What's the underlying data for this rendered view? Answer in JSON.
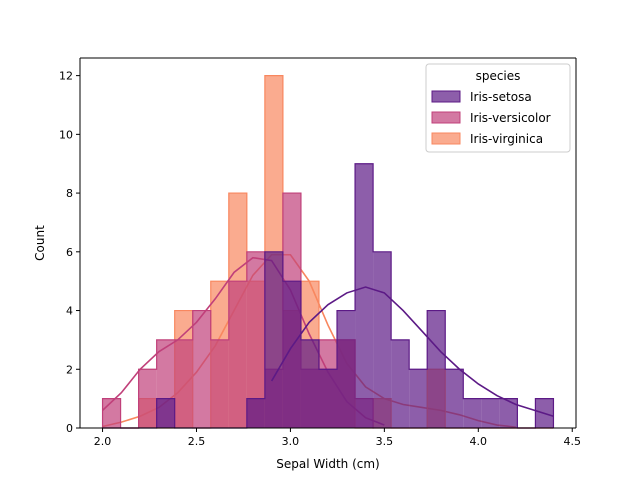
{
  "chart_data": {
    "type": "histogram",
    "title": "",
    "xlabel": "Sepal Width (cm)",
    "ylabel": "Count",
    "xlim": [
      1.88,
      4.52
    ],
    "ylim": [
      0,
      12.6
    ],
    "xticks": [
      2.0,
      2.5,
      3.0,
      3.5,
      4.0,
      4.5
    ],
    "xtick_labels": [
      "2.0",
      "2.5",
      "3.0",
      "3.5",
      "4.0",
      "4.5"
    ],
    "yticks": [
      0,
      2,
      4,
      6,
      8,
      10,
      12
    ],
    "ytick_labels": [
      "0",
      "2",
      "4",
      "6",
      "8",
      "10",
      "12"
    ],
    "grid": false,
    "bin_edges": [
      2.0,
      2.096,
      2.192,
      2.288,
      2.384,
      2.48,
      2.576,
      2.672,
      2.768,
      2.864,
      2.96,
      3.056,
      3.152,
      3.248,
      3.344,
      3.44,
      3.536,
      3.632,
      3.728,
      3.824,
      3.92,
      4.016,
      4.112,
      4.208,
      4.304,
      4.4
    ],
    "legend": {
      "title": "species",
      "position": "upper right"
    },
    "series": [
      {
        "name": "Iris-virginica",
        "color": "#f8875f",
        "counts": [
          0,
          0,
          1,
          0,
          4,
          0,
          5,
          8,
          5,
          12,
          4,
          5,
          2,
          3,
          0,
          1,
          0,
          0,
          2,
          0,
          0,
          0,
          0,
          0,
          0
        ],
        "kde_x": [
          2.0,
          2.1,
          2.2,
          2.3,
          2.4,
          2.5,
          2.6,
          2.7,
          2.8,
          2.9,
          3.0,
          3.1,
          3.2,
          3.3,
          3.4,
          3.5,
          3.6,
          3.7,
          3.8,
          3.9,
          4.0,
          4.1,
          4.2
        ],
        "kde_y": [
          0.05,
          0.2,
          0.4,
          0.7,
          1.2,
          1.9,
          2.8,
          4.0,
          5.2,
          5.9,
          5.9,
          5.0,
          3.5,
          2.2,
          1.4,
          1.0,
          0.8,
          0.7,
          0.6,
          0.45,
          0.25,
          0.1,
          0.03
        ]
      },
      {
        "name": "Iris-versicolor",
        "color": "#c0407a",
        "counts": [
          1,
          0,
          2,
          3,
          3,
          4,
          3,
          5,
          6,
          2,
          8,
          2,
          3,
          3,
          1,
          0,
          0,
          0,
          0,
          0,
          0,
          0,
          0,
          0,
          0
        ],
        "kde_x": [
          2.0,
          2.1,
          2.2,
          2.3,
          2.4,
          2.5,
          2.6,
          2.7,
          2.8,
          2.9,
          3.0,
          3.1,
          3.2,
          3.3,
          3.4,
          3.5
        ],
        "kde_y": [
          0.6,
          1.2,
          2.0,
          2.6,
          3.0,
          3.6,
          4.4,
          5.3,
          5.8,
          5.7,
          4.7,
          3.2,
          1.9,
          0.9,
          0.35,
          0.1
        ]
      },
      {
        "name": "Iris-setosa",
        "color": "#5c1a86",
        "counts": [
          0,
          0,
          0,
          1,
          0,
          0,
          0,
          0,
          1,
          6,
          5,
          3,
          2,
          4,
          9,
          6,
          3,
          2,
          4,
          2,
          1,
          1,
          1,
          0,
          1
        ],
        "kde_x": [
          2.9,
          3.0,
          3.1,
          3.2,
          3.3,
          3.4,
          3.5,
          3.6,
          3.7,
          3.8,
          3.9,
          4.0,
          4.1,
          4.2,
          4.3,
          4.4
        ],
        "kde_y": [
          1.6,
          2.7,
          3.6,
          4.2,
          4.6,
          4.8,
          4.6,
          4.0,
          3.3,
          2.6,
          2.0,
          1.5,
          1.1,
          0.8,
          0.6,
          0.4
        ]
      }
    ]
  }
}
